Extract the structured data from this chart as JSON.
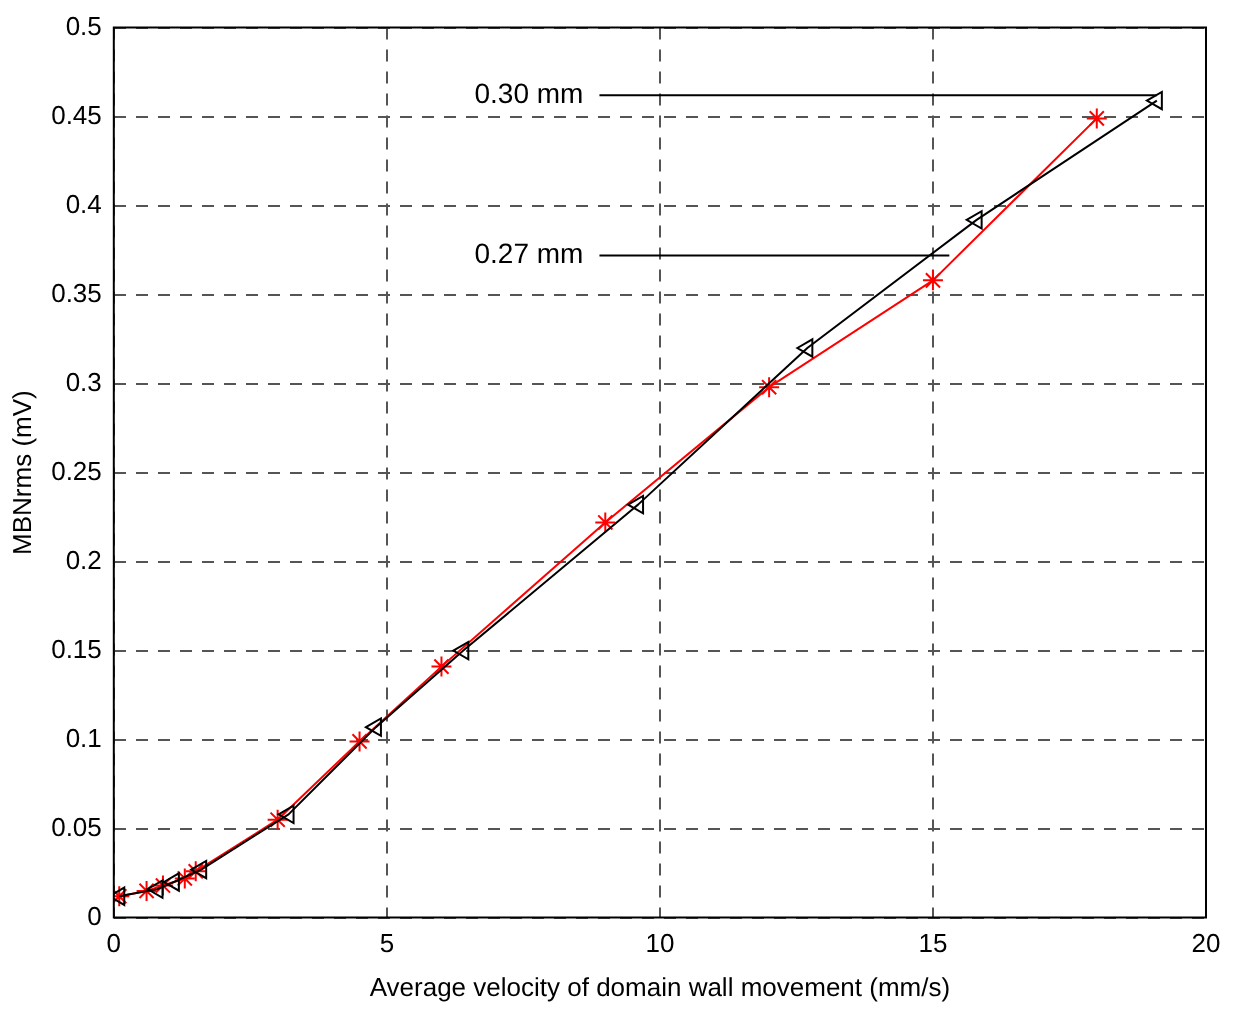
{
  "chart_data": {
    "type": "line",
    "xlabel": "Average velocity of domain wall movement (mm/s)",
    "ylabel": "MBNrms (mV)",
    "xlim": [
      0,
      20
    ],
    "xticks": [
      0,
      5,
      10,
      15,
      20
    ],
    "ylim": [
      0,
      0.5
    ],
    "yticks": [
      0,
      0.05,
      0.1,
      0.15,
      0.2,
      0.25,
      0.3,
      0.35,
      0.4,
      0.45,
      0.5
    ],
    "grid": true,
    "legend": false,
    "series": [
      {
        "color": "#000000",
        "marker": "triangle",
        "x": [
          0.1,
          0.8,
          1.1,
          1.6,
          3.2,
          4.8,
          6.4,
          9.6,
          12.7,
          15.8,
          19.1
        ],
        "values": [
          0.012,
          0.016,
          0.02,
          0.027,
          0.058,
          0.107,
          0.15,
          0.232,
          0.32,
          0.392,
          0.459
        ]
      },
      {
        "color": "#ff0000",
        "marker": "cross",
        "x": [
          0.1,
          0.6,
          0.9,
          1.3,
          1.5,
          3.0,
          4.5,
          6.0,
          9.0,
          12.0,
          15.0,
          18.0
        ],
        "values": [
          0.012,
          0.015,
          0.018,
          0.022,
          0.026,
          0.055,
          0.099,
          0.141,
          0.222,
          0.298,
          0.358,
          0.449
        ]
      }
    ],
    "annotations": [
      {
        "text": "0.30 mm",
        "x": 19.1,
        "y": 0.462
      },
      {
        "text": "0.27 mm",
        "x": 15.3,
        "y": 0.372
      }
    ]
  }
}
